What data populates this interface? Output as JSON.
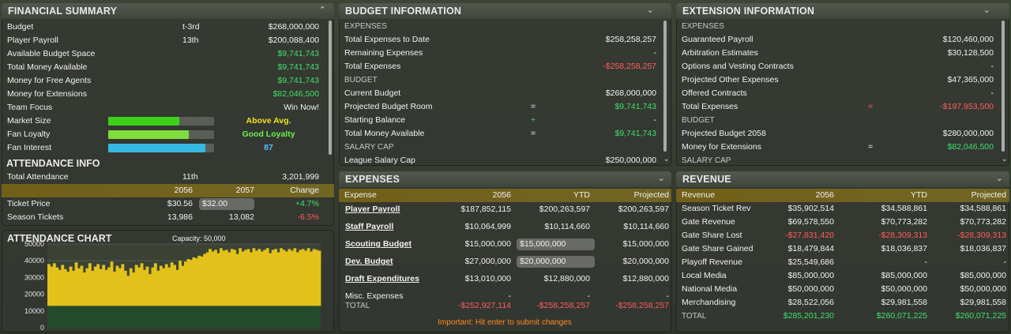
{
  "financial": {
    "title": "FINANCIAL SUMMARY",
    "rows": [
      {
        "label": "Budget",
        "rank": "t-3rd",
        "value": "$268,000,000",
        "color": "#f2f2f2"
      },
      {
        "label": "Player Payroll",
        "rank": "13th",
        "value": "$200,088,400",
        "color": "#f2f2f2"
      },
      {
        "label": "Available Budget Space",
        "rank": "",
        "value": "$9,741,743",
        "color": "#3fe06b"
      },
      {
        "label": "Total Money Available",
        "rank": "",
        "value": "$9,741,743",
        "color": "#3fe06b"
      },
      {
        "label": "Money for Free Agents",
        "rank": "",
        "value": "$9,741,743",
        "color": "#3fe06b"
      },
      {
        "label": "Money for Extensions",
        "rank": "",
        "value": "$82,046,500",
        "color": "#3fe06b"
      },
      {
        "label": "Team Focus",
        "rank": "",
        "value": "Win Now!",
        "color": "#f2f2f2"
      }
    ],
    "meters": [
      {
        "label": "Market Size",
        "fraction": 0.67,
        "fill": "#3ecf1a",
        "text": "Above Avg.",
        "text_color": "#f0e21a"
      },
      {
        "label": "Fan Loyalty",
        "fraction": 0.76,
        "fill": "#7fdc3c",
        "text": "Good Loyalty",
        "text_color": "#6df04a"
      },
      {
        "label": "Fan Interest",
        "fraction": 0.92,
        "fill": "#35b9e0",
        "text": "87",
        "text_color": "#4fc3ff"
      }
    ]
  },
  "attendance": {
    "title": "ATTENDANCE INFO",
    "total_label": "Total Attendance",
    "total_rank": "11th",
    "total_value": "3,201,999",
    "headers": [
      "2056",
      "2057",
      "Change"
    ],
    "rows": [
      {
        "label": "Ticket Price",
        "v2056": "$30.56",
        "v2057": "$32.00",
        "change": "+4.7%",
        "change_color": "#3fe06b"
      },
      {
        "label": "Season Tickets",
        "v2056": "13,986",
        "v2057": "13,082",
        "change": "-6.5%",
        "change_color": "#ff5c5c"
      }
    ]
  },
  "chart_data": {
    "type": "area",
    "title": "ATTENDANCE CHART",
    "subtitle": "Capacity: 50,000",
    "ylim": [
      0,
      50000
    ],
    "yticks": [
      "0",
      "10000",
      "20000",
      "30000",
      "40000",
      "50000"
    ],
    "baseline": 13000,
    "values": [
      38000,
      36500,
      38500,
      36000,
      34500,
      37500,
      35000,
      33500,
      36500,
      34000,
      39000,
      35500,
      37000,
      33000,
      35500,
      38500,
      34000,
      36500,
      38000,
      35000,
      37500,
      34500,
      36000,
      39500,
      33500,
      37000,
      35500,
      38000,
      34000,
      31000,
      35500,
      33000,
      37500,
      36000,
      38500,
      34500,
      36500,
      32000,
      36000,
      38500,
      34000,
      37000,
      35500,
      38000,
      36000,
      39000,
      37500,
      34500,
      40000,
      37000,
      39500,
      41000,
      40500,
      42000,
      41500,
      43000,
      42500,
      44000,
      45000,
      47000,
      45500,
      46500,
      44500,
      47500,
      46000,
      46500,
      45000,
      47000,
      46500,
      44000,
      47500,
      45500,
      46500,
      47000,
      45000,
      47500,
      46000,
      47000,
      45500,
      46500,
      47500,
      44500,
      46500,
      47000,
      45000,
      47500,
      46500,
      45500,
      47000,
      46000,
      47500,
      45000,
      46500,
      47000,
      46000,
      47500,
      45500,
      47000,
      46500,
      46000
    ]
  },
  "budget": {
    "title": "BUDGET INFORMATION",
    "rows": [
      {
        "kind": "section",
        "label": "EXPENSES"
      },
      {
        "kind": "row",
        "label": "Total Expenses to Date",
        "op": "",
        "value": "$258,258,257",
        "color": "#f2f2f2"
      },
      {
        "kind": "row",
        "label": "Remaining Expenses",
        "op": "",
        "value": "-",
        "color": "#f2f2f2"
      },
      {
        "kind": "row",
        "label": "Total Expenses",
        "op": "",
        "value": "-$258,258,257",
        "color": "#ff5c5c"
      },
      {
        "kind": "section",
        "label": "BUDGET"
      },
      {
        "kind": "row",
        "label": "Current Budget",
        "op": "",
        "value": "$268,000,000",
        "color": "#f2f2f2"
      },
      {
        "kind": "row",
        "label": "Projected Budget Room",
        "op": "=",
        "value": "$9,741,743",
        "color": "#3fe06b"
      },
      {
        "kind": "row",
        "label": "Starting Balance",
        "op": "+",
        "value": "-",
        "color": "#f2f2f2"
      },
      {
        "kind": "row",
        "label": "Total Money Available",
        "op": "=",
        "value": "$9,741,743",
        "color": "#3fe06b"
      },
      {
        "kind": "section",
        "label": "SALARY CAP"
      },
      {
        "kind": "row",
        "label": "League Salary Cap",
        "op": "",
        "value": "$250,000,000",
        "color": "#f2f2f2"
      }
    ]
  },
  "extension": {
    "title": "EXTENSION INFORMATION",
    "rows": [
      {
        "kind": "section",
        "label": "EXPENSES"
      },
      {
        "kind": "row",
        "label": "Guaranteed Payroll",
        "op": "",
        "value": "$120,460,000",
        "color": "#f2f2f2"
      },
      {
        "kind": "row",
        "label": "Arbitration Estimates",
        "op": "",
        "value": "$30,128,500",
        "color": "#f2f2f2"
      },
      {
        "kind": "row",
        "label": "Options and Vesting Contracts",
        "op": "",
        "value": "-",
        "color": "#f2f2f2"
      },
      {
        "kind": "row",
        "label": "Projected Other Expenses",
        "op": "",
        "value": "$47,365,000",
        "color": "#f2f2f2"
      },
      {
        "kind": "row",
        "label": "Offered Contracts",
        "op": "",
        "value": "-",
        "color": "#f2f2f2"
      },
      {
        "kind": "row",
        "label": "Total Expenses",
        "op": "=",
        "value": "-$197,953,500",
        "color": "#ff5c5c"
      },
      {
        "kind": "section",
        "label": "BUDGET"
      },
      {
        "kind": "row",
        "label": "Projected Budget 2058",
        "op": "",
        "value": "$280,000,000",
        "color": "#f2f2f2"
      },
      {
        "kind": "row",
        "label": "Money for Extensions",
        "op": "=",
        "value": "$82,046,500",
        "color": "#3fe06b"
      },
      {
        "kind": "section",
        "label": "SALARY CAP"
      }
    ]
  },
  "expenses": {
    "title": "EXPENSES",
    "headers": [
      "Expense",
      "2056",
      "YTD",
      "Projected"
    ],
    "rows": [
      {
        "label": "Player Payroll",
        "link": true,
        "v2056": "$187,852,115",
        "ytd": "$200,263,597",
        "ytd_input": false,
        "proj": "$200,263,597",
        "color": "#f2f2f2"
      },
      {
        "label": "Staff Payroll",
        "link": true,
        "v2056": "$10,064,999",
        "ytd": "$10,114,660",
        "ytd_input": false,
        "proj": "$10,114,660",
        "color": "#f2f2f2"
      },
      {
        "label": "Scouting Budget",
        "link": true,
        "v2056": "$15,000,000",
        "ytd": "$15,000,000",
        "ytd_input": true,
        "proj": "$15,000,000",
        "color": "#f2f2f2"
      },
      {
        "label": "Dev. Budget",
        "link": true,
        "v2056": "$27,000,000",
        "ytd": "$20,000,000",
        "ytd_input": true,
        "proj": "$20,000,000",
        "color": "#f2f2f2"
      },
      {
        "label": "Draft Expenditures",
        "link": true,
        "v2056": "$13,010,000",
        "ytd": "$12,880,000",
        "ytd_input": false,
        "proj": "$12,880,000",
        "color": "#f2f2f2"
      },
      {
        "label": "Misc. Expenses",
        "link": false,
        "v2056": "-",
        "ytd": "-",
        "ytd_input": false,
        "proj": "-",
        "color": "#f2f2f2"
      },
      {
        "label": "TOTAL",
        "link": false,
        "v2056": "-$252,927,114",
        "ytd": "-$258,258,257",
        "ytd_input": false,
        "proj": "-$258,258,257",
        "color": "#ff5c5c"
      }
    ],
    "note": "Important: Hit enter to submit changes"
  },
  "revenue": {
    "title": "REVENUE",
    "headers": [
      "Revenue",
      "2056",
      "YTD",
      "Projected"
    ],
    "rows": [
      {
        "label": "Season Ticket Rev",
        "v2056": "$35,902,514",
        "ytd": "$34,588,861",
        "proj": "$34,588,861",
        "color": "#f2f2f2"
      },
      {
        "label": "Gate Revenue",
        "v2056": "$69,578,550",
        "ytd": "$70,773,282",
        "proj": "$70,773,282",
        "color": "#f2f2f2"
      },
      {
        "label": "Gate Share Lost",
        "v2056": "-$27,831,420",
        "ytd": "-$28,309,313",
        "proj": "-$28,309,313",
        "color": "#ff5c5c"
      },
      {
        "label": "Gate Share Gained",
        "v2056": "$18,479,844",
        "ytd": "$18,036,837",
        "proj": "$18,036,837",
        "color": "#f2f2f2"
      },
      {
        "label": "Playoff Revenue",
        "v2056": "$25,549,686",
        "ytd": "-",
        "proj": "-",
        "color": "#f2f2f2"
      },
      {
        "label": "Local Media",
        "v2056": "$85,000,000",
        "ytd": "$85,000,000",
        "proj": "$85,000,000",
        "color": "#f2f2f2"
      },
      {
        "label": "National Media",
        "v2056": "$50,000,000",
        "ytd": "$50,000,000",
        "proj": "$50,000,000",
        "color": "#f2f2f2"
      },
      {
        "label": "Merchandising",
        "v2056": "$28,522,056",
        "ytd": "$29,981,558",
        "proj": "$29,981,558",
        "color": "#f2f2f2"
      },
      {
        "label": "TOTAL",
        "v2056": "$285,201,230",
        "ytd": "$260,071,225",
        "proj": "$260,071,225",
        "color": "#3fe06b"
      }
    ]
  },
  "icons": {
    "collapse": "chevron-up-icon",
    "expand": "chevron-down-icon"
  }
}
